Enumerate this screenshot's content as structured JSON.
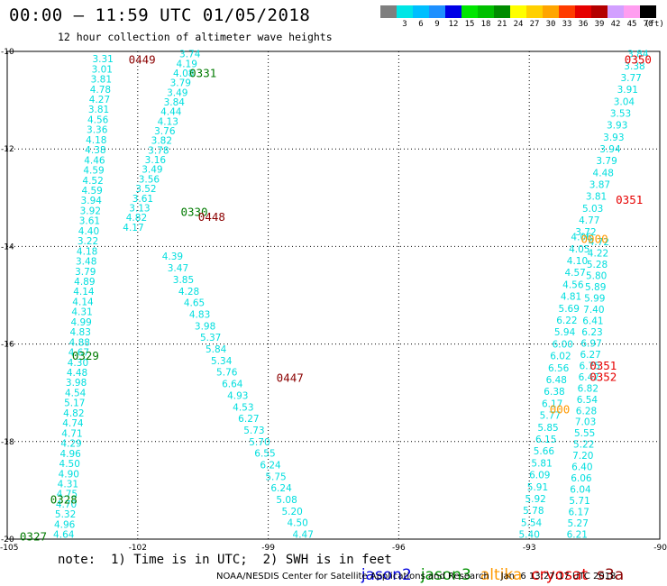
{
  "header": {
    "title": "00:00 – 11:59 UTC 01/05/2018",
    "subtitle": "12 hour collection of altimeter wave heights"
  },
  "colorbar": {
    "unit": "(ft)",
    "steps": [
      {
        "label": "",
        "color": "#7f7f7f"
      },
      {
        "label": "3",
        "color": "#00e6e6"
      },
      {
        "label": "6",
        "color": "#00bfff"
      },
      {
        "label": "9",
        "color": "#1e90ff"
      },
      {
        "label": "12",
        "color": "#0000e6"
      },
      {
        "label": "15",
        "color": "#00e600"
      },
      {
        "label": "18",
        "color": "#00c000"
      },
      {
        "label": "21",
        "color": "#008c00"
      },
      {
        "label": "24",
        "color": "#ffff00"
      },
      {
        "label": "27",
        "color": "#ffd000"
      },
      {
        "label": "30",
        "color": "#ffa500"
      },
      {
        "label": "33",
        "color": "#ff3c00"
      },
      {
        "label": "36",
        "color": "#e60000"
      },
      {
        "label": "39",
        "color": "#b40000"
      },
      {
        "label": "42",
        "color": "#d2a0ff"
      },
      {
        "label": "45",
        "color": "#ff9ef0"
      },
      {
        "label": "70",
        "color": "#000000"
      }
    ]
  },
  "map": {
    "lon_range": [
      -105,
      -90
    ],
    "lat_range": [
      -20,
      -10
    ],
    "lon_ticks": [
      "-105",
      "-102",
      "-99",
      "-96",
      "-93",
      "-90"
    ],
    "lat_ticks": [
      "-10",
      "-12",
      "-14",
      "-16",
      "-18",
      "-20"
    ],
    "lat_tick_values": [
      -10,
      -12,
      -14,
      -16,
      -18,
      -20
    ],
    "lon_tick_values": [
      -105,
      -102,
      -99,
      -96,
      -93,
      -90
    ],
    "value_color": "#00dede",
    "tracks": [
      {
        "lon0": -102.8,
        "lat0": -10.15,
        "lon1": -103.7,
        "lat1": -19.9,
        "values": [
          "3.31",
          "3.01",
          "3.81",
          "4.78",
          "4.27",
          "3.81",
          "4.56",
          "3.36",
          "4.18",
          "4.38",
          "4.46",
          "4.59",
          "4.52",
          "4.59",
          "3.94",
          "3.92",
          "3.61",
          "4.40",
          "3.22",
          "4.18",
          "3.48",
          "3.79",
          "4.89",
          "4.14",
          "4.14",
          "4.31",
          "4.99",
          "4.83",
          "4.88",
          "4.67",
          "4.30",
          "4.48",
          "3.98",
          "4.54",
          "5.17",
          "4.82",
          "4.74",
          "4.71",
          "4.29",
          "4.96",
          "4.50",
          "4.90",
          "4.31",
          "4.75",
          "4.70",
          "5.32",
          "4.96",
          "4.64"
        ]
      },
      {
        "lon0": -100.8,
        "lat0": -10.05,
        "lon1": -102.1,
        "lat1": -13.6,
        "values": [
          "3.74",
          "4.19",
          "4.08",
          "3.79",
          "3.49",
          "3.84",
          "4.44",
          "4.13",
          "3.76",
          "3.82",
          "3.78",
          "3.16",
          "3.49",
          "3.56",
          "3.52",
          "3.61",
          "3.13",
          "4.82",
          "4.17"
        ]
      },
      {
        "lon0": -101.2,
        "lat0": -14.2,
        "lon1": -98.2,
        "lat1": -19.9,
        "values": [
          "4.39",
          "3.47",
          "3.85",
          "4.28",
          "4.65",
          "4.83",
          "3.98",
          "5.37",
          "5.84",
          "5.34",
          "5.76",
          "6.64",
          "4.93",
          "4.53",
          "6.27",
          "5.73",
          "5.70",
          "6.55",
          "6.24",
          "5.75",
          "6.24",
          "5.08",
          "5.20",
          "4.50",
          "4.47"
        ]
      },
      {
        "lon0": -90.5,
        "lat0": -10.05,
        "lon1": -91.7,
        "lat1": -13.7,
        "values": [
          "3.84",
          "3.38",
          "3.77",
          "3.91",
          "3.04",
          "3.53",
          "3.93",
          "3.93",
          "3.94",
          "3.79",
          "4.48",
          "3.87",
          "3.81",
          "5.03",
          "4.77",
          "3.72"
        ]
      },
      {
        "lon0": -91.8,
        "lat0": -13.8,
        "lon1": -93.0,
        "lat1": -19.9,
        "values": [
          "4.06",
          "4.05",
          "4.10",
          "4.57",
          "4.56",
          "4.81",
          "5.69",
          "6.22",
          "5.94",
          "6.00",
          "6.02",
          "6.56",
          "6.48",
          "6.38",
          "6.17",
          "5.77",
          "5.85",
          "6.15",
          "5.66",
          "5.81",
          "6.09",
          "5.91",
          "5.92",
          "5.78",
          "5.54",
          "5.40"
        ]
      },
      {
        "lon0": -91.4,
        "lat0": -13.9,
        "lon1": -91.9,
        "lat1": -19.9,
        "values": [
          "4.72",
          "4.22",
          "5.28",
          "5.80",
          "5.89",
          "5.99",
          "7.40",
          "6.41",
          "6.23",
          "6.97",
          "6.27",
          "6.75",
          "6.47",
          "6.82",
          "6.54",
          "6.28",
          "7.03",
          "5.55",
          "5.22",
          "7.20",
          "6.40",
          "6.06",
          "6.04",
          "5.71",
          "6.17",
          "5.27",
          "6.21"
        ]
      }
    ],
    "passes": [
      {
        "label": "0449",
        "lon": -101.9,
        "lat": -10.18,
        "color": "#8b0000"
      },
      {
        "label": "0331",
        "lon": -100.5,
        "lat": -10.45,
        "color": "#007a00"
      },
      {
        "label": "0330",
        "lon": -100.7,
        "lat": -13.3,
        "color": "#007a00"
      },
      {
        "label": "0448",
        "lon": -100.3,
        "lat": -13.4,
        "color": "#8b0000"
      },
      {
        "label": "0329",
        "lon": -103.2,
        "lat": -16.25,
        "color": "#007a00"
      },
      {
        "label": "0447",
        "lon": -98.5,
        "lat": -16.7,
        "color": "#8b0000"
      },
      {
        "label": "0328",
        "lon": -103.7,
        "lat": -19.2,
        "color": "#007a00"
      },
      {
        "label": "0327",
        "lon": -104.4,
        "lat": -19.95,
        "color": "#007a00"
      },
      {
        "label": "0350",
        "lon": -90.5,
        "lat": -10.18,
        "color": "#e60000"
      },
      {
        "label": "0351",
        "lon": -90.7,
        "lat": -13.05,
        "color": "#e60000"
      },
      {
        "label": "0000",
        "lon": -91.5,
        "lat": -13.85,
        "color": "#ff9900"
      },
      {
        "label": "0351",
        "lon": -91.3,
        "lat": -16.45,
        "color": "#e60000"
      },
      {
        "label": "0352",
        "lon": -91.3,
        "lat": -16.68,
        "color": "#e60000"
      },
      {
        "label": "000",
        "lon": -92.3,
        "lat": -17.35,
        "color": "#ff9900"
      }
    ]
  },
  "note": "note:  1) Time is in UTC;  2) SWH is in feet",
  "missions": [
    {
      "name": "jason2",
      "color": "#0000dd"
    },
    {
      "name": "jason3",
      "color": "#009000"
    },
    {
      "name": "altika",
      "color": "#ff9900"
    },
    {
      "name": "cryosat",
      "color": "#e60000"
    },
    {
      "name": "s3a",
      "color": "#8b0000"
    }
  ],
  "footer": "NOAA/NESDIS Center for Satellite Applications and Research    Jan  6 13:27:17 UTC 2018"
}
